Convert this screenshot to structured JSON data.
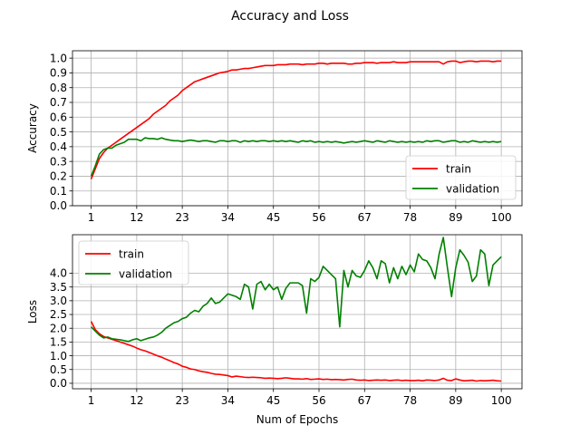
{
  "figure_title": "Accuracy and Loss",
  "chart_data": [
    {
      "type": "line",
      "ylabel": "Accuracy",
      "xlabel": "",
      "xlim": [
        -3.5,
        105
      ],
      "ylim": [
        0,
        1.05
      ],
      "xticks": [
        1,
        12,
        23,
        34,
        45,
        56,
        67,
        78,
        89,
        100
      ],
      "xtick_labels": [
        "1",
        "12",
        "23",
        "34",
        "45",
        "56",
        "67",
        "78",
        "89",
        "100"
      ],
      "yticks": [
        0.0,
        0.1,
        0.2,
        0.3,
        0.4,
        0.5,
        0.6,
        0.7,
        0.8,
        0.9,
        1.0
      ],
      "ytick_labels": [
        "0.0",
        "0.1",
        "0.2",
        "0.3",
        "0.4",
        "0.5",
        "0.6",
        "0.7",
        "0.8",
        "0.9",
        "1.0"
      ],
      "grid": true,
      "legend_position": "lower-right",
      "x_start": 1,
      "series": [
        {
          "name": "train",
          "color": "#ff0000",
          "values": [
            0.18,
            0.25,
            0.32,
            0.36,
            0.39,
            0.41,
            0.43,
            0.45,
            0.47,
            0.49,
            0.51,
            0.53,
            0.55,
            0.57,
            0.59,
            0.62,
            0.64,
            0.66,
            0.68,
            0.71,
            0.73,
            0.75,
            0.78,
            0.8,
            0.82,
            0.84,
            0.85,
            0.86,
            0.87,
            0.88,
            0.89,
            0.9,
            0.905,
            0.91,
            0.92,
            0.92,
            0.925,
            0.93,
            0.93,
            0.935,
            0.94,
            0.945,
            0.95,
            0.95,
            0.95,
            0.955,
            0.955,
            0.955,
            0.96,
            0.96,
            0.96,
            0.955,
            0.96,
            0.96,
            0.96,
            0.965,
            0.965,
            0.96,
            0.965,
            0.965,
            0.965,
            0.965,
            0.96,
            0.96,
            0.965,
            0.965,
            0.97,
            0.97,
            0.97,
            0.965,
            0.97,
            0.97,
            0.97,
            0.975,
            0.97,
            0.97,
            0.97,
            0.975,
            0.975,
            0.975,
            0.975,
            0.975,
            0.975,
            0.975,
            0.975,
            0.96,
            0.975,
            0.98,
            0.98,
            0.97,
            0.975,
            0.98,
            0.98,
            0.975,
            0.98,
            0.98,
            0.98,
            0.975,
            0.98,
            0.98
          ]
        },
        {
          "name": "validation",
          "color": "#008000",
          "values": [
            0.2,
            0.27,
            0.35,
            0.38,
            0.39,
            0.39,
            0.41,
            0.42,
            0.43,
            0.45,
            0.45,
            0.45,
            0.44,
            0.46,
            0.455,
            0.455,
            0.45,
            0.46,
            0.45,
            0.445,
            0.44,
            0.44,
            0.435,
            0.44,
            0.445,
            0.44,
            0.435,
            0.44,
            0.44,
            0.435,
            0.43,
            0.44,
            0.44,
            0.435,
            0.44,
            0.44,
            0.43,
            0.44,
            0.435,
            0.44,
            0.435,
            0.44,
            0.44,
            0.435,
            0.44,
            0.435,
            0.44,
            0.435,
            0.44,
            0.435,
            0.43,
            0.44,
            0.435,
            0.44,
            0.43,
            0.435,
            0.43,
            0.435,
            0.43,
            0.435,
            0.43,
            0.425,
            0.43,
            0.435,
            0.43,
            0.435,
            0.44,
            0.435,
            0.43,
            0.44,
            0.435,
            0.43,
            0.44,
            0.435,
            0.43,
            0.435,
            0.43,
            0.435,
            0.43,
            0.435,
            0.43,
            0.44,
            0.435,
            0.44,
            0.44,
            0.43,
            0.435,
            0.44,
            0.44,
            0.43,
            0.435,
            0.43,
            0.44,
            0.435,
            0.43,
            0.435,
            0.43,
            0.435,
            0.43,
            0.435
          ]
        }
      ]
    },
    {
      "type": "line",
      "ylabel": "Loss",
      "xlabel": "Num of Epochs",
      "xlim": [
        -3.5,
        105
      ],
      "ylim": [
        -0.2,
        5.4
      ],
      "xticks": [
        1,
        12,
        23,
        34,
        45,
        56,
        67,
        78,
        89,
        100
      ],
      "xtick_labels": [
        "1",
        "12",
        "23",
        "34",
        "45",
        "56",
        "67",
        "78",
        "89",
        "100"
      ],
      "yticks": [
        0.0,
        0.5,
        1.0,
        1.5,
        2.0,
        2.5,
        3.0,
        3.5,
        4.0
      ],
      "ytick_labels": [
        "0.0",
        "0.5",
        "1.0",
        "1.5",
        "2.0",
        "2.5",
        "3.0",
        "3.5",
        "4.0"
      ],
      "grid": true,
      "legend_position": "upper-left",
      "x_start": 1,
      "series": [
        {
          "name": "train",
          "color": "#ff0000",
          "values": [
            2.25,
            1.95,
            1.8,
            1.7,
            1.65,
            1.6,
            1.55,
            1.5,
            1.45,
            1.4,
            1.35,
            1.28,
            1.22,
            1.18,
            1.12,
            1.06,
            1.0,
            0.95,
            0.88,
            0.82,
            0.75,
            0.7,
            0.62,
            0.58,
            0.52,
            0.5,
            0.45,
            0.42,
            0.4,
            0.36,
            0.33,
            0.32,
            0.3,
            0.28,
            0.23,
            0.26,
            0.24,
            0.22,
            0.21,
            0.22,
            0.21,
            0.2,
            0.18,
            0.19,
            0.18,
            0.17,
            0.18,
            0.2,
            0.18,
            0.16,
            0.16,
            0.15,
            0.17,
            0.14,
            0.15,
            0.16,
            0.14,
            0.15,
            0.13,
            0.14,
            0.13,
            0.12,
            0.14,
            0.15,
            0.12,
            0.11,
            0.12,
            0.1,
            0.11,
            0.12,
            0.11,
            0.12,
            0.1,
            0.11,
            0.12,
            0.1,
            0.11,
            0.1,
            0.1,
            0.11,
            0.09,
            0.12,
            0.11,
            0.1,
            0.12,
            0.18,
            0.11,
            0.1,
            0.16,
            0.12,
            0.09,
            0.1,
            0.11,
            0.08,
            0.1,
            0.09,
            0.1,
            0.11,
            0.09,
            0.08
          ]
        },
        {
          "name": "validation",
          "color": "#008000",
          "values": [
            2.05,
            1.9,
            1.75,
            1.65,
            1.68,
            1.62,
            1.6,
            1.58,
            1.55,
            1.52,
            1.58,
            1.62,
            1.55,
            1.6,
            1.65,
            1.68,
            1.75,
            1.85,
            2.0,
            2.1,
            2.2,
            2.25,
            2.35,
            2.4,
            2.55,
            2.65,
            2.6,
            2.8,
            2.9,
            3.1,
            2.9,
            2.95,
            3.1,
            3.25,
            3.2,
            3.15,
            3.05,
            3.6,
            3.5,
            2.7,
            3.6,
            3.7,
            3.4,
            3.6,
            3.4,
            3.5,
            3.05,
            3.45,
            3.65,
            3.65,
            3.65,
            3.55,
            2.55,
            3.8,
            3.7,
            3.85,
            4.25,
            4.1,
            3.95,
            3.8,
            2.05,
            4.1,
            3.5,
            4.1,
            3.9,
            3.85,
            4.1,
            4.45,
            4.2,
            3.8,
            4.45,
            4.35,
            3.65,
            4.2,
            3.8,
            4.25,
            3.95,
            4.3,
            4.05,
            4.7,
            4.5,
            4.45,
            4.2,
            3.8,
            4.7,
            5.3,
            4.2,
            3.15,
            4.2,
            4.85,
            4.65,
            4.4,
            3.7,
            3.9,
            4.85,
            4.7,
            3.55,
            4.3,
            4.45,
            4.6
          ]
        }
      ]
    }
  ]
}
